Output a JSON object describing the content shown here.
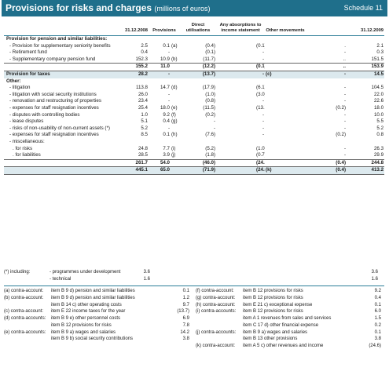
{
  "header": {
    "title": "Provisions for risks and charges",
    "subtitle": "(millions of euros)",
    "schedule": "Schedule 11"
  },
  "columns": [
    "31.12.2008",
    "Provisions",
    "Direct utilisations",
    "Any absorptions to income statement",
    "Other movements",
    "31.12.2009"
  ],
  "rows": [
    {
      "type": "sec",
      "label": "Provision for pension and similar liabilities:"
    },
    {
      "type": "row",
      "indent": 1,
      "label": "- Provision for supplementary seniority benefits",
      "v": [
        "2.5",
        "0.1",
        "(a)",
        "(0.4)",
        "(0.1)",
        "",
        ".",
        "2.1"
      ]
    },
    {
      "type": "row",
      "indent": 1,
      "label": "- Retirement fund",
      "v": [
        "0.4",
        "-",
        "",
        "(0.1)",
        "-",
        "",
        "-",
        "0.3"
      ]
    },
    {
      "type": "row",
      "indent": 1,
      "label": "- Supplementary company pension fund",
      "v": [
        "152.3",
        "10.9",
        "(b)",
        "(11.7)",
        "-",
        "",
        "..",
        "151.5"
      ]
    },
    {
      "type": "tot",
      "label": "",
      "v": [
        "155.2",
        "11.0",
        "",
        "(12.2)",
        "(0.1)",
        "",
        "..",
        "153.9"
      ]
    },
    {
      "type": "band",
      "label": "Provision for taxes",
      "v": [
        "28.2",
        "-",
        "",
        "(13.7)",
        "-",
        "(c)",
        "-",
        "14.5"
      ]
    },
    {
      "type": "sec",
      "label": "Other:"
    },
    {
      "type": "row",
      "indent": 1,
      "label": "- litigation",
      "v": [
        "113.8",
        "14.7",
        "(d)",
        "(17.9)",
        "(6.1)",
        "",
        "-",
        "104.5"
      ]
    },
    {
      "type": "row",
      "indent": 1,
      "label": "- litigation with social security institutions",
      "v": [
        "26.0",
        "-",
        "",
        "(1.0)",
        "(3.0)",
        "",
        "-",
        "22.0"
      ]
    },
    {
      "type": "row",
      "indent": 1,
      "label": "- renovation and restructuring of properties",
      "v": [
        "23.4",
        "-",
        "",
        "(0.8)",
        "-",
        "",
        "-",
        "22.6"
      ]
    },
    {
      "type": "row",
      "indent": 1,
      "label": "- expenses for staff resignation incentives",
      "v": [
        "25.4",
        "18.0",
        "(e)",
        "(11.5)",
        "(13.7)",
        "",
        "(0.2)",
        "18.0"
      ]
    },
    {
      "type": "row",
      "indent": 1,
      "label": "- disputes with controlling bodies",
      "v": [
        "1.0",
        "9.2",
        "(f)",
        "(0.2)",
        "-",
        "",
        "-",
        "10.0"
      ]
    },
    {
      "type": "row",
      "indent": 1,
      "label": "- lease disputes",
      "v": [
        "5.1",
        "0.4",
        "(g)",
        "-",
        "-",
        "",
        "-",
        "5.5"
      ]
    },
    {
      "type": "row",
      "indent": 1,
      "label": "- risks of non-usability of non-current assets   (*)",
      "v": [
        "5.2",
        "-",
        "",
        "-",
        "-",
        "",
        "-",
        "5.2"
      ]
    },
    {
      "type": "row",
      "indent": 1,
      "label": "- expenses for staff resignation incentives",
      "v": [
        "8.5",
        "0.1",
        "(h)",
        "(7.6)",
        "-",
        "",
        "(0.2)",
        "0.8"
      ]
    },
    {
      "type": "row",
      "indent": 1,
      "label": "- miscellaneous:",
      "v": [
        "",
        "",
        "",
        "",
        "",
        "",
        "",
        ""
      ]
    },
    {
      "type": "row",
      "indent": 2,
      "label": ". for risks",
      "v": [
        "24.8",
        "7.7",
        "(i)",
        "(5.2)",
        "(1.0)",
        "",
        "-",
        "26.3"
      ]
    },
    {
      "type": "row",
      "indent": 2,
      "label": ". for liabilities",
      "v": [
        "28.5",
        "3.9",
        "(j)",
        "(1.8)",
        "(0.7)",
        "",
        "-",
        "29.9"
      ]
    },
    {
      "type": "tot",
      "label": "",
      "v": [
        "261.7",
        "54.0",
        "",
        "(46.0)",
        "(24.5)",
        "",
        "(0.4)",
        "244.8"
      ]
    },
    {
      "type": "grand",
      "label": "",
      "v": [
        "445.1",
        "65.0",
        "",
        "(71.9)",
        "(24.6)",
        "(k)",
        "(0.4)",
        "413.2"
      ]
    }
  ],
  "footnote_star": {
    "label": "(*) including:",
    "items": [
      {
        "label": "- programmes under development",
        "v2008": "3.6",
        "v2009": "3.6"
      },
      {
        "label": "- technical",
        "v2008": "1.6",
        "v2009": "1.6"
      }
    ]
  },
  "contra_left": [
    {
      "key": "(a) contra-account:",
      "item": "item B 9 d) pension and similar liabilities",
      "value": "0.1"
    },
    {
      "key": "(b) contra-account:",
      "item": "item B 9 d) pension and similar liabilities",
      "value": "1.2"
    },
    {
      "key": "",
      "item": "item B 14 c) other operating costs",
      "value": "9.7"
    },
    {
      "key": "(c) contra-account:",
      "item": "item E 22 income taxes for the year",
      "value": "(13.7)"
    },
    {
      "key": "(d) contra-accounts:",
      "item": "item B 9 e) other personnel costs",
      "value": "6.9"
    },
    {
      "key": "",
      "item": "item B 12 provisions for risks",
      "value": "7.8"
    },
    {
      "key": "(e) contra-accounts:",
      "item": "item B 9 a) wages and salaries",
      "value": "14.2"
    },
    {
      "key": "",
      "item": "item B 9 b) social security contributions",
      "value": "3.8"
    }
  ],
  "contra_right": [
    {
      "key": "(f) contra-account:",
      "item": "item B 12 provisions for risks",
      "value": "9.2"
    },
    {
      "key": "(g) contra-account:",
      "item": "item B 12 provisions for risks",
      "value": "0.4"
    },
    {
      "key": "(h) contra-account:",
      "item": "item E 21 c) exceptional expense",
      "value": "0.1"
    },
    {
      "key": "(i) contra-accounts:",
      "item": "item B 12 provisions for risks",
      "value": "6.0"
    },
    {
      "key": "",
      "item": "item A 1 revenues from sales and services",
      "value": "1.5"
    },
    {
      "key": "",
      "item": "item C 17 d) other financial expense",
      "value": "0.2"
    },
    {
      "key": "(j) contra-accounts:",
      "item": "item B 9 a) wages and salaries",
      "value": "0.1"
    },
    {
      "key": "",
      "item": "item B 13 other provisions",
      "value": "3.8"
    },
    {
      "key": "(k) contra-account:",
      "item": "item A 5 c) other revenues and income",
      "value": "(24.6)"
    }
  ]
}
